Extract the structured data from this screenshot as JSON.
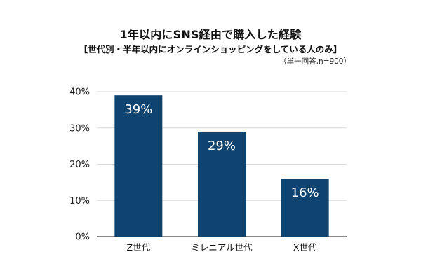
{
  "chart_data": {
    "type": "bar",
    "title": "1年以内にSNS経由で購入した経験",
    "subtitle": "【世代別・半年以内にオンラインショッピングをしている人のみ】",
    "note": "（単一回答,n=900）",
    "categories": [
      "Z世代",
      "ミレニアル世代",
      "X世代"
    ],
    "values": [
      39,
      29,
      16
    ],
    "data_labels": [
      "39%",
      "29%",
      "16%"
    ],
    "y_ticks": [
      0,
      10,
      20,
      30,
      40
    ],
    "y_tick_labels": [
      "0%",
      "10%",
      "20%",
      "30%",
      "40%"
    ],
    "ylim": [
      0,
      40
    ],
    "grid": true,
    "bar_color": "#0f4470",
    "grid_color": "#d9d9d9"
  }
}
